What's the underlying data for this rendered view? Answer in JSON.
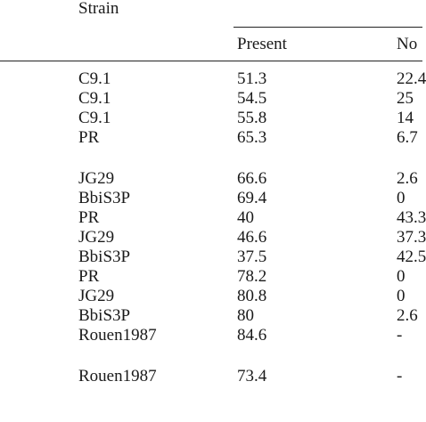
{
  "table": {
    "strain_header": "Strain",
    "present_header": "Present",
    "no_header": "No",
    "rows": [
      {
        "strain": "C9.1",
        "present": "51.3",
        "no": "22.4"
      },
      {
        "strain": "C9.1",
        "present": "54.5",
        "no": "25"
      },
      {
        "strain": "C9.1",
        "present": "55.8",
        "no": "14"
      },
      {
        "strain": "PR",
        "present": "65.3",
        "no": "6.7"
      },
      {
        "strain": "JG29",
        "present": "66.6",
        "no": "2.6"
      },
      {
        "strain": "BbiS3P",
        "present": "69.4",
        "no": "0"
      },
      {
        "strain": "PR",
        "present": "40",
        "no": "43.3"
      },
      {
        "strain": "JG29",
        "present": "46.6",
        "no": "37.3"
      },
      {
        "strain": "BbiS3P",
        "present": "37.5",
        "no": "42.5"
      },
      {
        "strain": "PR",
        "present": "78.2",
        "no": "0"
      },
      {
        "strain": "JG29",
        "present": "80.8",
        "no": "0"
      },
      {
        "strain": "BbiS3P",
        "present": "80",
        "no": "2.6"
      },
      {
        "strain": "Rouen1987",
        "present": "84.6",
        "no": "-"
      },
      {
        "strain": "Rouen1987",
        "present": "73.4",
        "no": "-"
      }
    ]
  }
}
